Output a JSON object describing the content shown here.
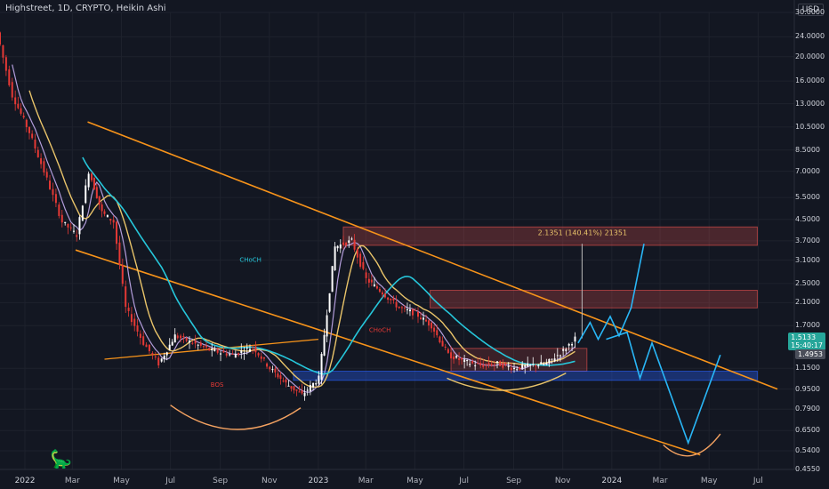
{
  "header": {
    "title": "Highstreet, 1D, CRYPTO, Heikin Ashi",
    "currency": "USD"
  },
  "price_axis": [
    "30.0000",
    "24.0000",
    "20.0000",
    "16.0000",
    "13.0000",
    "10.5000",
    "8.5000",
    "7.0000",
    "5.5000",
    "4.5000",
    "3.7000",
    "3.1000",
    "2.5000",
    "2.1000",
    "1.7000",
    "1.5133",
    "1.4953",
    "1.1500",
    "0.9500",
    "0.7900",
    "0.6500",
    "0.5400",
    "0.4550"
  ],
  "current_price": {
    "value": "1.5133",
    "countdown": "15:40:17",
    "other": "1.4953"
  },
  "time_axis": [
    {
      "label": "2022",
      "year": true
    },
    {
      "label": "Mar",
      "year": false
    },
    {
      "label": "May",
      "year": false
    },
    {
      "label": "Jul",
      "year": false
    },
    {
      "label": "Sep",
      "year": false
    },
    {
      "label": "Nov",
      "year": false
    },
    {
      "label": "2023",
      "year": true
    },
    {
      "label": "Mar",
      "year": false
    },
    {
      "label": "May",
      "year": false
    },
    {
      "label": "Jul",
      "year": false
    },
    {
      "label": "Sep",
      "year": false
    },
    {
      "label": "Nov",
      "year": false
    },
    {
      "label": "2024",
      "year": true
    },
    {
      "label": "Mar",
      "year": false
    },
    {
      "label": "May",
      "year": false
    },
    {
      "label": "Jul",
      "year": false
    }
  ],
  "annotations": {
    "measure": "2.1351 (140.41%) 21351",
    "choch1": "CHoCH",
    "choch2": "CHoCH",
    "bos": "BOS"
  },
  "colors": {
    "background": "#131722",
    "channel": "#f7931a",
    "ma_teal": "#26c6da",
    "ma_yellow": "#e9c46a",
    "ma_purple": "#b39ddb",
    "up": "#ffffff",
    "down": "#e53935",
    "zone_red": "#ef5350",
    "zone_blue": "#2962ff",
    "projection": "#29b6f6"
  },
  "chart_data": {
    "type": "candlestick",
    "title": "Highstreet, 1D, CRYPTO, Heikin Ashi",
    "yscale": "log",
    "ylim": [
      0.455,
      30
    ],
    "xlim": [
      "2021-12-01",
      "2024-08-15"
    ],
    "series": [
      {
        "values": [
          [
            "2021-12-01",
            25.0
          ],
          [
            "2021-12-20",
            14.0
          ],
          [
            "2022-01-10",
            10.0
          ],
          [
            "2022-02-01",
            6.5
          ],
          [
            "2022-02-20",
            4.4
          ],
          [
            "2022-03-10",
            3.9
          ],
          [
            "2022-03-25",
            7.0
          ],
          [
            "2022-04-10",
            4.8
          ],
          [
            "2022-04-25",
            4.4
          ],
          [
            "2022-05-10",
            2.0
          ],
          [
            "2022-06-01",
            1.45
          ],
          [
            "2022-06-20",
            1.2
          ],
          [
            "2022-07-10",
            1.55
          ],
          [
            "2022-08-01",
            1.45
          ],
          [
            "2022-08-25",
            1.35
          ],
          [
            "2022-09-20",
            1.3
          ],
          [
            "2022-10-15",
            1.4
          ],
          [
            "2022-11-05",
            1.15
          ],
          [
            "2022-11-25",
            1.0
          ],
          [
            "2022-12-15",
            0.9
          ],
          [
            "2023-01-05",
            1.05
          ],
          [
            "2023-01-25",
            3.5
          ],
          [
            "2023-02-15",
            3.7
          ],
          [
            "2023-03-05",
            2.6
          ],
          [
            "2023-03-25",
            2.3
          ],
          [
            "2023-04-15",
            2.0
          ],
          [
            "2023-05-05",
            1.9
          ],
          [
            "2023-05-25",
            1.7
          ],
          [
            "2023-06-15",
            1.3
          ],
          [
            "2023-07-05",
            1.22
          ],
          [
            "2023-07-25",
            1.18
          ],
          [
            "2023-08-15",
            1.2
          ],
          [
            "2023-09-05",
            1.15
          ],
          [
            "2023-09-25",
            1.18
          ],
          [
            "2023-10-15",
            1.2
          ],
          [
            "2023-11-05",
            1.35
          ],
          [
            "2023-11-20",
            1.5133
          ]
        ]
      }
    ],
    "drawings": {
      "channel_upper": [
        [
          "2022-03-20",
          11.0
        ],
        [
          "2024-07-25",
          0.95
        ]
      ],
      "channel_lower": [
        [
          "2022-03-05",
          3.4
        ],
        [
          "2024-04-20",
          0.52
        ]
      ],
      "inner_line": [
        [
          "2022-04-10",
          1.25
        ],
        [
          "2023-01-01",
          1.5
        ]
      ],
      "resistance_zone": [
        3.55,
        4.2
      ],
      "supply_zone": [
        2.0,
        2.35
      ],
      "demand_zone": [
        1.03,
        1.38
      ],
      "target_measure": 3.6
    }
  }
}
